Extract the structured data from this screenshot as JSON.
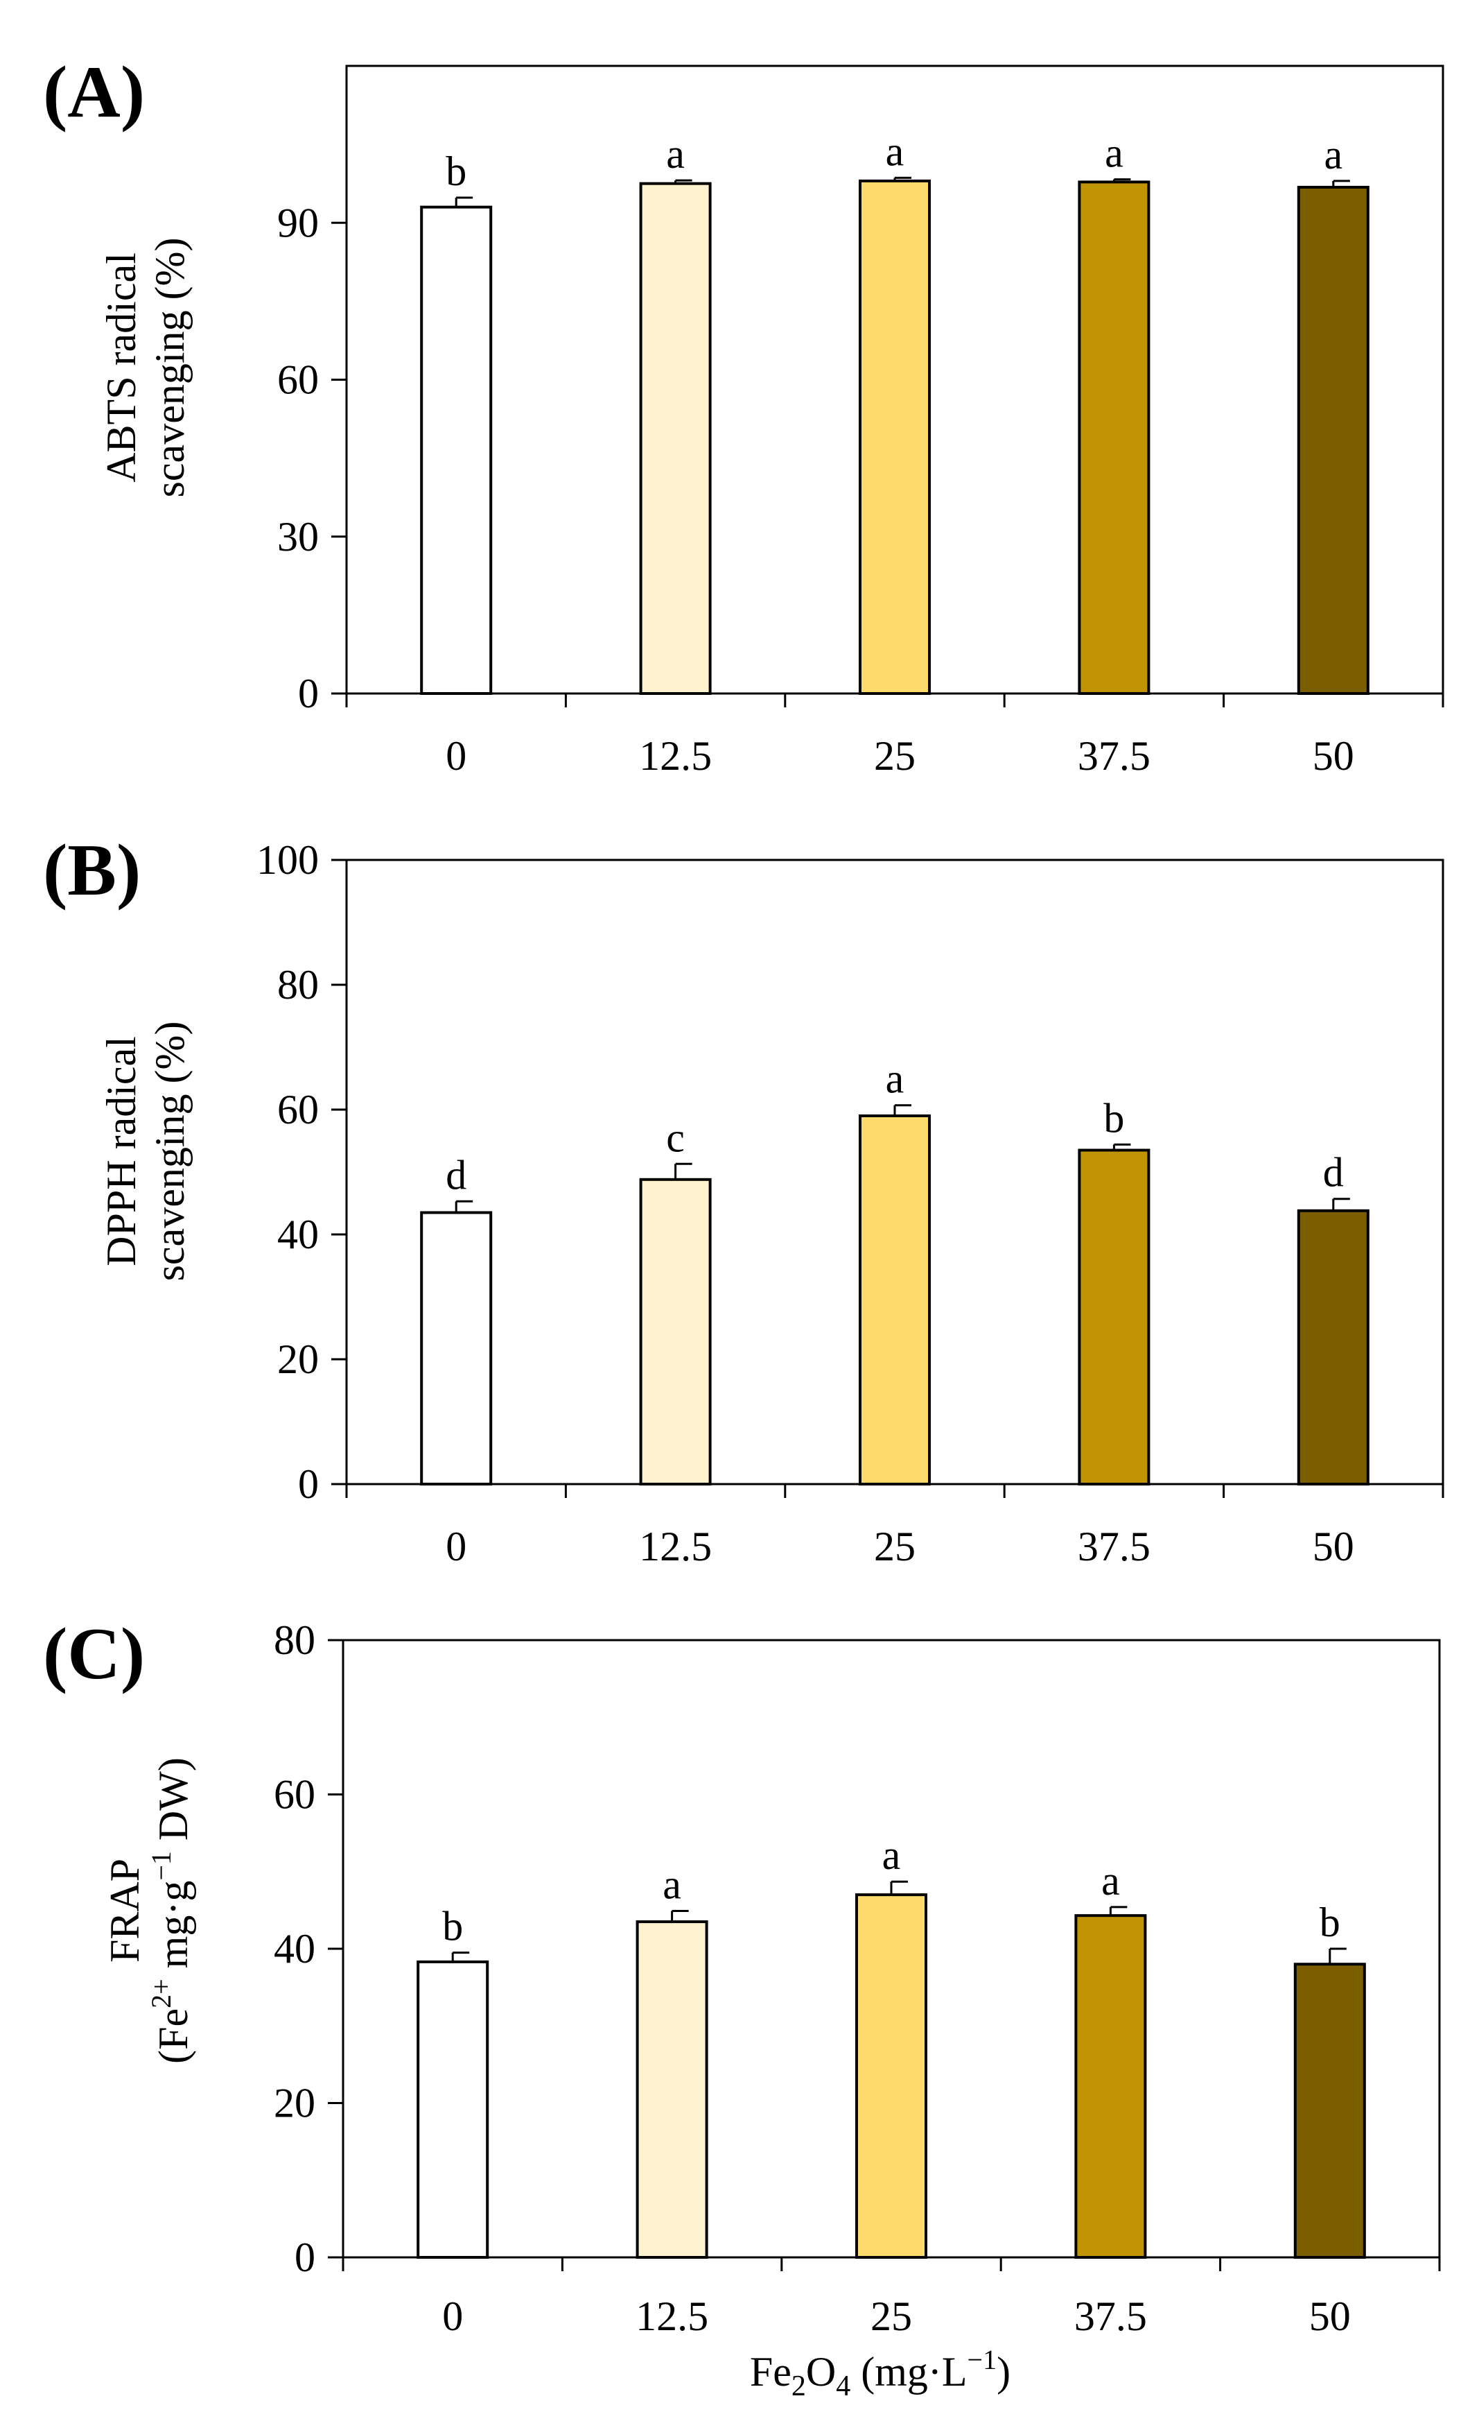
{
  "figure": {
    "xlabel_main": "Fe",
    "xlabel_sub": "2",
    "xlabel_mid": "O",
    "xlabel_sub2": "4",
    "xlabel_unit_open": " (mg·L",
    "xlabel_unit_sup": "−1",
    "xlabel_unit_close": ")"
  },
  "colors": [
    "#ffffff",
    "#fff3cf",
    "#fed96b",
    "#c19404",
    "#7b5e00"
  ],
  "chart_data": [
    {
      "type": "bar",
      "panel_label": "(A)",
      "categories": [
        "0",
        "12.5",
        "25",
        "37.5",
        "50"
      ],
      "values": [
        93,
        97.5,
        98,
        97.8,
        96.8
      ],
      "errors": [
        1.8,
        0.6,
        0.6,
        0.5,
        1.2
      ],
      "significance": [
        "b",
        "a",
        "a",
        "a",
        "a"
      ],
      "ylabel_line1": "ABTS radical",
      "ylabel_line2": "scavenging (%)",
      "ylim": [
        0,
        120
      ],
      "yticks": [
        0,
        30,
        60,
        90
      ],
      "ytick_labels": [
        "0",
        "30",
        "60",
        "90"
      ]
    },
    {
      "type": "bar",
      "panel_label": "(B)",
      "categories": [
        "0",
        "12.5",
        "25",
        "37.5",
        "50"
      ],
      "values": [
        43.5,
        48.8,
        59,
        53.5,
        43.8
      ],
      "errors": [
        1.8,
        2.5,
        1.7,
        0.9,
        1.9
      ],
      "significance": [
        "d",
        "c",
        "a",
        "b",
        "d"
      ],
      "ylabel_line1": "DPPH radical",
      "ylabel_line2": "scavenging (%)",
      "ylim": [
        0,
        100
      ],
      "yticks": [
        0,
        20,
        40,
        60,
        80,
        100
      ],
      "ytick_labels": [
        "0",
        "20",
        "40",
        "60",
        "80",
        "100"
      ]
    },
    {
      "type": "bar",
      "panel_label": "(C)",
      "categories": [
        "0",
        "12.5",
        "25",
        "37.5",
        "50"
      ],
      "values": [
        38.3,
        43.5,
        47,
        44.3,
        38
      ],
      "errors": [
        1.2,
        1.4,
        1.7,
        1.1,
        2
      ],
      "significance": [
        "b",
        "a",
        "a",
        "a",
        "b"
      ],
      "ylabel_line1": "FRAP",
      "ylabel_line2_parts": [
        "(Fe",
        "2+",
        " mg·g",
        "−1",
        " DW)"
      ],
      "ylim": [
        0,
        80
      ],
      "yticks": [
        0,
        20,
        40,
        60,
        80
      ],
      "ytick_labels": [
        "0",
        "20",
        "40",
        "60",
        "80"
      ]
    }
  ]
}
